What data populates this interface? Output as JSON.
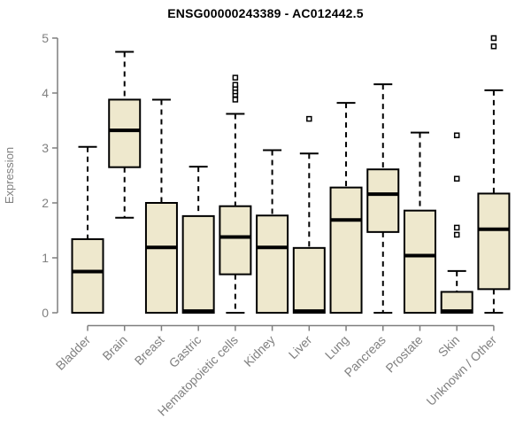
{
  "chart_data": {
    "type": "boxplot",
    "title": "ENSG00000243389 - AC012442.5",
    "ylabel": "Expression",
    "xlabel": "",
    "ylim": [
      0,
      5
    ],
    "yticks": [
      0,
      1,
      2,
      3,
      4,
      5
    ],
    "grid": false,
    "legend": "none",
    "colors": {
      "box_fill": "#EEE8CD",
      "box_border": "#000000",
      "median": "#000000",
      "whisker": "#000000",
      "outlier_fill": "#ffffff",
      "axis": "#7f7f7f",
      "tick_label": "#808080",
      "title": "#000000"
    },
    "categories": [
      "Bladder",
      "Brain",
      "Breast",
      "Gastric",
      "Hematopoietic cells",
      "Kidney",
      "Liver",
      "Lung",
      "Pancreas",
      "Prostate",
      "Skin",
      "Unknown / Other"
    ],
    "boxes": [
      {
        "category": "Bladder",
        "low": 0,
        "q1": 0,
        "median": 0.75,
        "q3": 1.34,
        "high": 3.02,
        "outliers": []
      },
      {
        "category": "Brain",
        "low": 1.73,
        "q1": 2.65,
        "median": 3.32,
        "q3": 3.88,
        "high": 4.75,
        "outliers": []
      },
      {
        "category": "Breast",
        "low": 0,
        "q1": 0,
        "median": 1.19,
        "q3": 2.0,
        "high": 3.88,
        "outliers": []
      },
      {
        "category": "Gastric",
        "low": 0,
        "q1": 0,
        "median": 0.03,
        "q3": 1.76,
        "high": 2.66,
        "outliers": []
      },
      {
        "category": "Hematopoietic cells",
        "low": 0,
        "q1": 0.7,
        "median": 1.38,
        "q3": 1.94,
        "high": 3.62,
        "outliers": [
          3.88,
          3.97,
          4.03,
          4.09,
          4.15,
          4.28
        ]
      },
      {
        "category": "Kidney",
        "low": 0,
        "q1": 0,
        "median": 1.19,
        "q3": 1.77,
        "high": 2.96,
        "outliers": []
      },
      {
        "category": "Liver",
        "low": 0,
        "q1": 0,
        "median": 0.03,
        "q3": 1.18,
        "high": 2.9,
        "outliers": [
          3.53
        ]
      },
      {
        "category": "Lung",
        "low": 0,
        "q1": 0,
        "median": 1.69,
        "q3": 2.28,
        "high": 3.82,
        "outliers": []
      },
      {
        "category": "Pancreas",
        "low": 0,
        "q1": 1.47,
        "median": 2.16,
        "q3": 2.61,
        "high": 4.16,
        "outliers": []
      },
      {
        "category": "Prostate",
        "low": 0,
        "q1": 0,
        "median": 1.04,
        "q3": 1.86,
        "high": 3.28,
        "outliers": []
      },
      {
        "category": "Skin",
        "low": 0,
        "q1": 0,
        "median": 0.03,
        "q3": 0.38,
        "high": 0.76,
        "outliers": [
          1.42,
          1.55,
          2.44,
          3.23
        ]
      },
      {
        "category": "Unknown / Other",
        "low": 0,
        "q1": 0.43,
        "median": 1.52,
        "q3": 2.17,
        "high": 4.05,
        "outliers": [
          4.85,
          5.0
        ]
      }
    ]
  }
}
